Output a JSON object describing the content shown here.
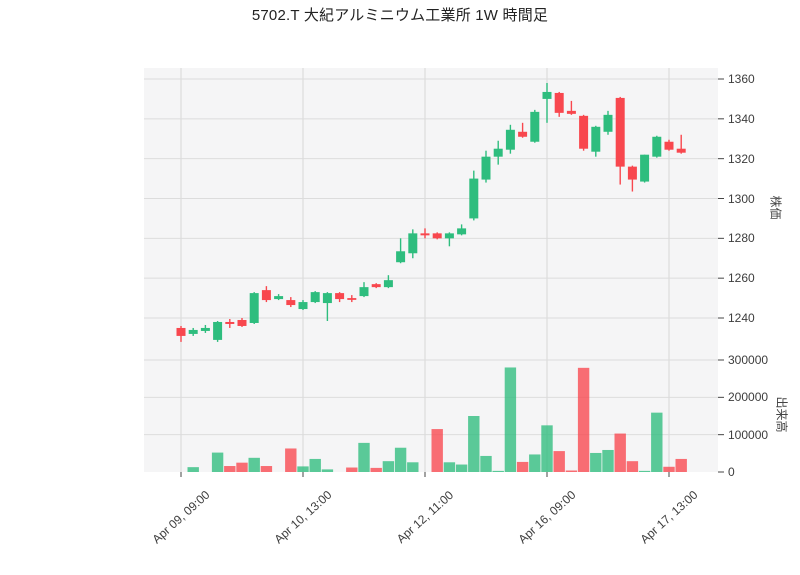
{
  "title": "5702.T 大紀アルミニウム工業所 1W 時間足",
  "chart_data": {
    "type": "candlestick+volume",
    "title": "5702.T 大紀アルミニウム工業所 1W 時間足",
    "symbol": "5702.T",
    "interval": "1W 時間足",
    "grid": true,
    "legend": "none",
    "colors": {
      "up": "#2ebd7e",
      "down": "#f8474e",
      "grid": "#dcdcdc",
      "panel": "#f5f5f6",
      "tick_text": "#3d3d3d",
      "axis_mark": "#444444"
    },
    "price_axis": {
      "label": "株価",
      "side": "right",
      "ticks": [
        1240,
        1260,
        1280,
        1300,
        1320,
        1340,
        1360
      ],
      "range": [
        1222,
        1365
      ]
    },
    "volume_axis": {
      "label": "出来高",
      "side": "right",
      "ticks": [
        0,
        100000,
        200000,
        300000
      ],
      "range": [
        0,
        310000
      ]
    },
    "x_axis": {
      "tick_indices": [
        0,
        10,
        20,
        30,
        40
      ],
      "tick_labels": [
        "Apr 09, 09:00",
        "Apr 10, 13:00",
        "Apr 12, 11:00",
        "Apr 16, 09:00",
        "Apr 17, 13:00"
      ]
    },
    "columns": [
      "open",
      "high",
      "low",
      "close",
      "volume"
    ],
    "candles": [
      [
        1235.0,
        1236.0,
        1228.0,
        1231.0,
        0
      ],
      [
        1232.0,
        1235.0,
        1231.0,
        1234.0,
        13000
      ],
      [
        1233.5,
        1236.5,
        1232.5,
        1235.0,
        0
      ],
      [
        1229.0,
        1238.5,
        1228.0,
        1238.0,
        52000
      ],
      [
        1238.0,
        1239.5,
        1235.0,
        1237.0,
        16000
      ],
      [
        1239.0,
        1240.0,
        1235.5,
        1236.0,
        25000
      ],
      [
        1237.5,
        1253.0,
        1237.0,
        1252.5,
        38000
      ],
      [
        1254.0,
        1256.0,
        1248.0,
        1249.0,
        16000
      ],
      [
        1249.5,
        1252.0,
        1249.0,
        1251.0,
        0
      ],
      [
        1249.0,
        1250.5,
        1245.5,
        1246.5,
        63000
      ],
      [
        1244.5,
        1249.0,
        1244.0,
        1248.0,
        15000
      ],
      [
        1248.0,
        1253.5,
        1247.5,
        1253.0,
        35000
      ],
      [
        1247.5,
        1253.0,
        1238.5,
        1252.5,
        7000
      ],
      [
        1252.5,
        1253.0,
        1248.0,
        1249.5,
        0
      ],
      [
        1250.0,
        1251.5,
        1248.0,
        1249.5,
        12000
      ],
      [
        1251.0,
        1258.0,
        1250.5,
        1255.5,
        78000
      ],
      [
        1257.0,
        1257.5,
        1255.0,
        1255.5,
        11000
      ],
      [
        1255.5,
        1261.5,
        1255.0,
        1259.0,
        29000
      ],
      [
        1268.0,
        1280.0,
        1267.5,
        1273.5,
        65000
      ],
      [
        1272.5,
        1284.5,
        1270.0,
        1282.5,
        26000
      ],
      [
        1282.5,
        1285.0,
        1280.0,
        1281.5,
        0
      ],
      [
        1282.5,
        1283.0,
        1279.5,
        1280.0,
        115000
      ],
      [
        1280.0,
        1283.0,
        1276.0,
        1282.5,
        26000
      ],
      [
        1282.0,
        1287.0,
        1281.5,
        1285.0,
        20000
      ],
      [
        1290.0,
        1314.0,
        1289.0,
        1310.0,
        150000
      ],
      [
        1309.5,
        1324.0,
        1308.0,
        1321.0,
        43000
      ],
      [
        1321.0,
        1329.0,
        1317.0,
        1325.0,
        3000
      ],
      [
        1324.5,
        1337.0,
        1322.5,
        1334.5,
        280000
      ],
      [
        1333.5,
        1338.0,
        1330.5,
        1331.0,
        27000
      ],
      [
        1328.5,
        1344.5,
        1328.0,
        1343.5,
        47000
      ],
      [
        1350.0,
        1358.0,
        1338.0,
        1353.5,
        125000
      ],
      [
        1353.0,
        1353.5,
        1341.0,
        1343.0,
        56000
      ],
      [
        1344.0,
        1349.0,
        1342.0,
        1342.5,
        4000
      ],
      [
        1341.5,
        1342.0,
        1324.0,
        1325.0,
        279000
      ],
      [
        1323.5,
        1336.5,
        1321.0,
        1336.0,
        51000
      ],
      [
        1333.5,
        1344.0,
        1332.0,
        1342.0,
        59000
      ],
      [
        1350.5,
        1351.0,
        1307.0,
        1316.0,
        103000
      ],
      [
        1316.0,
        1316.5,
        1303.5,
        1309.5,
        29000
      ],
      [
        1308.5,
        1322.0,
        1308.0,
        1322.0,
        3000
      ],
      [
        1321.0,
        1331.5,
        1320.5,
        1331.0,
        159000
      ],
      [
        1328.5,
        1329.5,
        1324.0,
        1324.5,
        14000
      ],
      [
        1325.0,
        1332.0,
        1322.5,
        1323.0,
        35000
      ]
    ]
  }
}
